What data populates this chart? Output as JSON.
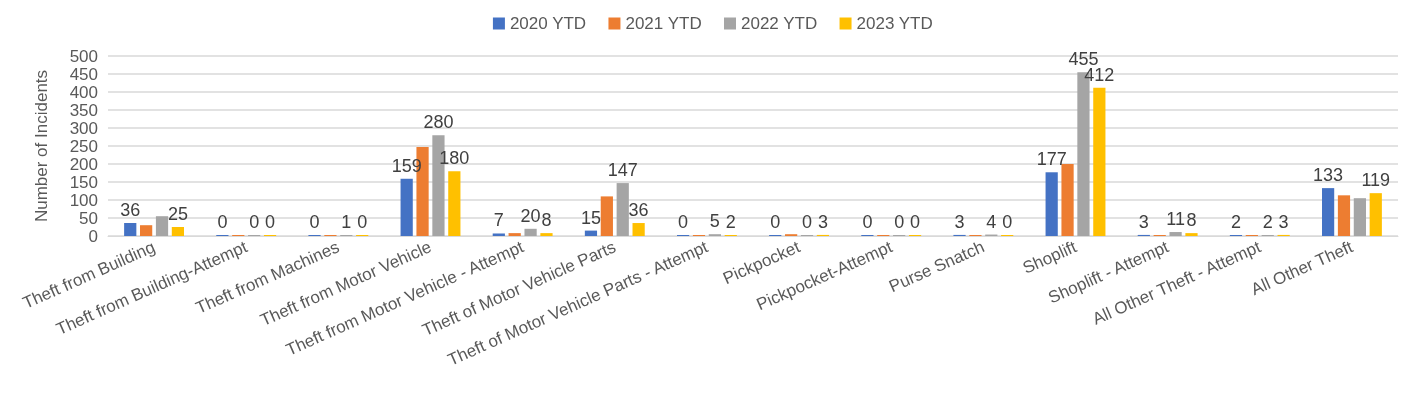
{
  "chart_data": {
    "type": "bar",
    "ylabel": "Number of Incidents",
    "categories": [
      "Theft from Building",
      "Theft from Building-Attempt",
      "Theft from Machines",
      "Theft from Motor Vehicle",
      "Theft from Motor Vehicle - Attempt",
      "Theft of Motor Vehicle Parts",
      "Theft of Motor Vehicle Parts - Attempt",
      "Pickpocket",
      "Pickpocket-Attempt",
      "Purse Snatch",
      "Shoplift",
      "Shoplift - Attempt",
      "All Other Theft - Attempt",
      "All Other Theft"
    ],
    "series": [
      {
        "name": "2020 YTD",
        "color": "#4472c4",
        "values": [
          36,
          0,
          0,
          159,
          7,
          15,
          0,
          0,
          0,
          3,
          177,
          3,
          2,
          133
        ],
        "value_labels": [
          "36",
          "0",
          "0",
          "159",
          "7",
          "15",
          "0",
          "0",
          "0",
          "3",
          "177",
          "3",
          "2",
          "133"
        ]
      },
      {
        "name": "2021 YTD",
        "color": "#ed7d31",
        "values": [
          30,
          0,
          0,
          247,
          8,
          110,
          0,
          5,
          0,
          0,
          200,
          0,
          0,
          113
        ],
        "value_labels": [
          null,
          null,
          null,
          null,
          null,
          null,
          null,
          null,
          null,
          null,
          null,
          null,
          null,
          null
        ]
      },
      {
        "name": "2022 YTD",
        "color": "#a5a5a5",
        "values": [
          55,
          0,
          1,
          280,
          20,
          147,
          5,
          0,
          0,
          4,
          455,
          11,
          2,
          105
        ],
        "value_labels": [
          null,
          "0",
          "1",
          "280",
          "20",
          "147",
          "5",
          "0",
          "0",
          "4",
          "455",
          "11",
          "2",
          null
        ]
      },
      {
        "name": "2023 YTD",
        "color": "#ffc000",
        "values": [
          25,
          0,
          0,
          180,
          8,
          36,
          2,
          3,
          0,
          0,
          412,
          8,
          3,
          119
        ],
        "value_labels": [
          "25",
          "0",
          "0",
          "180",
          "8",
          "36",
          "2",
          "3",
          "0",
          "0",
          "412",
          "8",
          "3",
          "119"
        ]
      }
    ],
    "ylim": [
      0,
      500
    ],
    "yticks": [
      0,
      50,
      100,
      150,
      200,
      250,
      300,
      350,
      400,
      450,
      500
    ],
    "grid": "y",
    "legend": "top"
  }
}
